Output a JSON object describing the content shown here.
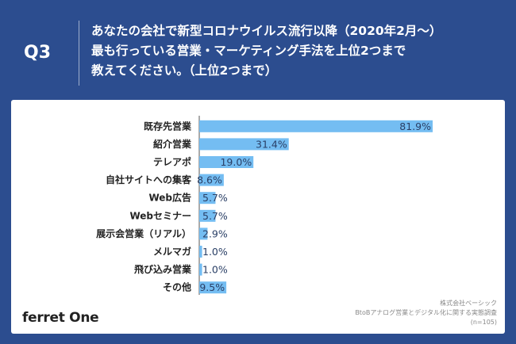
{
  "question": {
    "number": "Q3",
    "lines": [
      "あなたの会社で新型コロナウイルス流行以降（2020年2月〜）",
      "最も行っている営業・マーケティング手法を上位2つまで",
      "教えてください。（上位2つまで）"
    ]
  },
  "colors": {
    "header_bg": "#2c4d8f",
    "bar": "#74bdf2",
    "bar_border": "#5aa6e0",
    "axis": "#555555"
  },
  "chart_data": {
    "type": "bar",
    "orientation": "horizontal",
    "categories": [
      "既存先営業",
      "紹介営業",
      "テレアポ",
      "自社サイトへの集客",
      "Web広告",
      "Webセミナー",
      "展示会営業（リアル）",
      "メルマガ",
      "飛び込み営業",
      "その他"
    ],
    "values": [
      81.9,
      31.4,
      19.0,
      8.6,
      5.7,
      5.7,
      2.9,
      1.0,
      1.0,
      9.5
    ],
    "value_labels": [
      "81.9%",
      "31.4%",
      "19.0%",
      "8.6%",
      "5.7%",
      "5.7%",
      "2.9%",
      "1.0%",
      "1.0%",
      "9.5%"
    ],
    "xlim": [
      0,
      100
    ],
    "grid": false,
    "legend": "none"
  },
  "footer": {
    "logo": "ferret One",
    "source_lines": [
      "株式会社ベーシック",
      "BtoBアナログ営業とデジタル化に関する実態調査",
      "(n=105)"
    ]
  }
}
